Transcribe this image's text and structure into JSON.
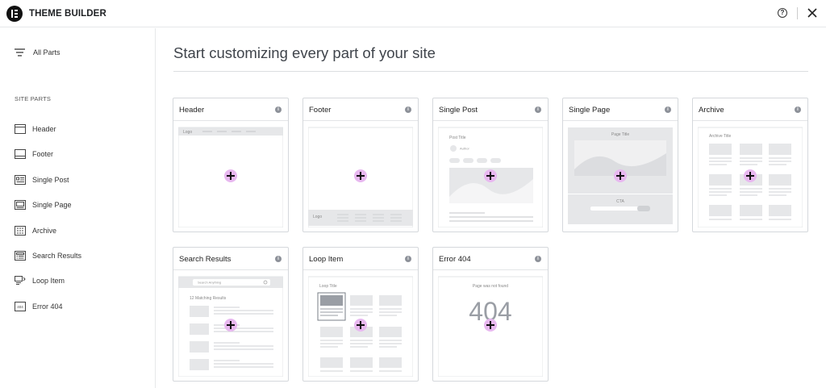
{
  "app": {
    "title": "THEME BUILDER",
    "logo_icon": "elementor-logo-icon"
  },
  "topbar": {
    "help_icon": "help-circle-icon",
    "help_glyph": "?",
    "close_icon": "close-icon"
  },
  "sidebar": {
    "all_parts": {
      "label": "All Parts",
      "icon": "filter-lines-icon"
    },
    "heading": "SITE PARTS",
    "items": [
      {
        "label": "Header",
        "icon": "header-icon"
      },
      {
        "label": "Footer",
        "icon": "footer-icon"
      },
      {
        "label": "Single Post",
        "icon": "single-post-icon"
      },
      {
        "label": "Single Page",
        "icon": "single-page-icon"
      },
      {
        "label": "Archive",
        "icon": "archive-icon"
      },
      {
        "label": "Search Results",
        "icon": "search-results-icon"
      },
      {
        "label": "Loop Item",
        "icon": "loop-item-icon"
      },
      {
        "label": "Error 404",
        "icon": "error-404-icon"
      }
    ]
  },
  "main": {
    "title": "Start customizing every part of your site",
    "cards": [
      {
        "title": "Header",
        "preview": {
          "logo": "Logo"
        }
      },
      {
        "title": "Footer",
        "preview": {
          "logo": "Logo"
        }
      },
      {
        "title": "Single Post",
        "preview": {
          "post_title": "Post Title",
          "author": "Author"
        }
      },
      {
        "title": "Single Page",
        "preview": {
          "page_title": "Page Title",
          "cta": "CTA"
        }
      },
      {
        "title": "Archive",
        "preview": {
          "archive_title": "Archive Title"
        }
      },
      {
        "title": "Search Results",
        "preview": {
          "search_value": "Search Anything",
          "matching": "12 Matching Results"
        }
      },
      {
        "title": "Loop Item",
        "preview": {
          "loop_title": "Loop Title"
        }
      },
      {
        "title": "Error 404",
        "preview": {
          "not_found": "Page was not found",
          "code": "404"
        }
      }
    ],
    "info_glyph": "i"
  },
  "colors": {
    "add_button": "#e8b8f0",
    "placeholder": "#e6e7e9",
    "border": "#d5d8dc"
  }
}
